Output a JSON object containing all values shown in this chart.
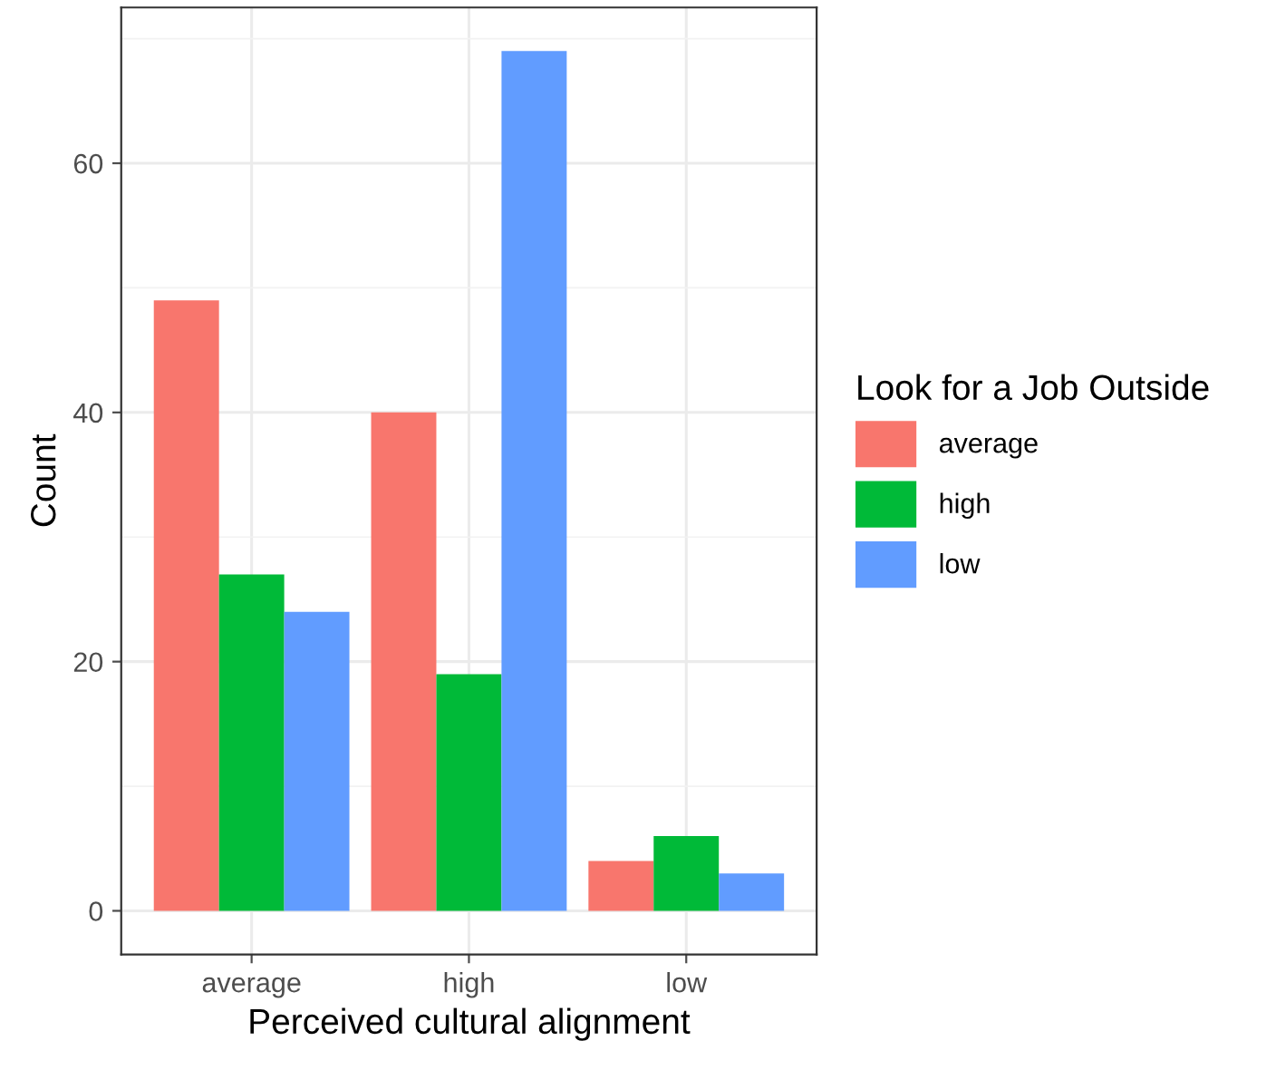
{
  "chart_data": {
    "type": "bar",
    "xlabel": "Perceived cultural alignment",
    "ylabel": "Count",
    "legend_title": "Look for a Job Outside",
    "categories": [
      "average",
      "high",
      "low"
    ],
    "series": [
      {
        "name": "average",
        "color": "#f8766d",
        "values": [
          49,
          40,
          4
        ]
      },
      {
        "name": "high",
        "color": "#00ba38",
        "values": [
          27,
          19,
          6
        ]
      },
      {
        "name": "low",
        "color": "#619cff",
        "values": [
          24,
          69,
          3
        ]
      }
    ],
    "ylim": [
      -3.5,
      72.5
    ],
    "yticks": [
      0,
      {
        "value": 10,
        "label": null
      },
      20,
      {
        "value": 30,
        "label": null
      },
      40,
      {
        "value": 50,
        "label": null
      },
      60,
      {
        "value": 70,
        "label": null
      }
    ],
    "grid": true,
    "legend": "right"
  }
}
